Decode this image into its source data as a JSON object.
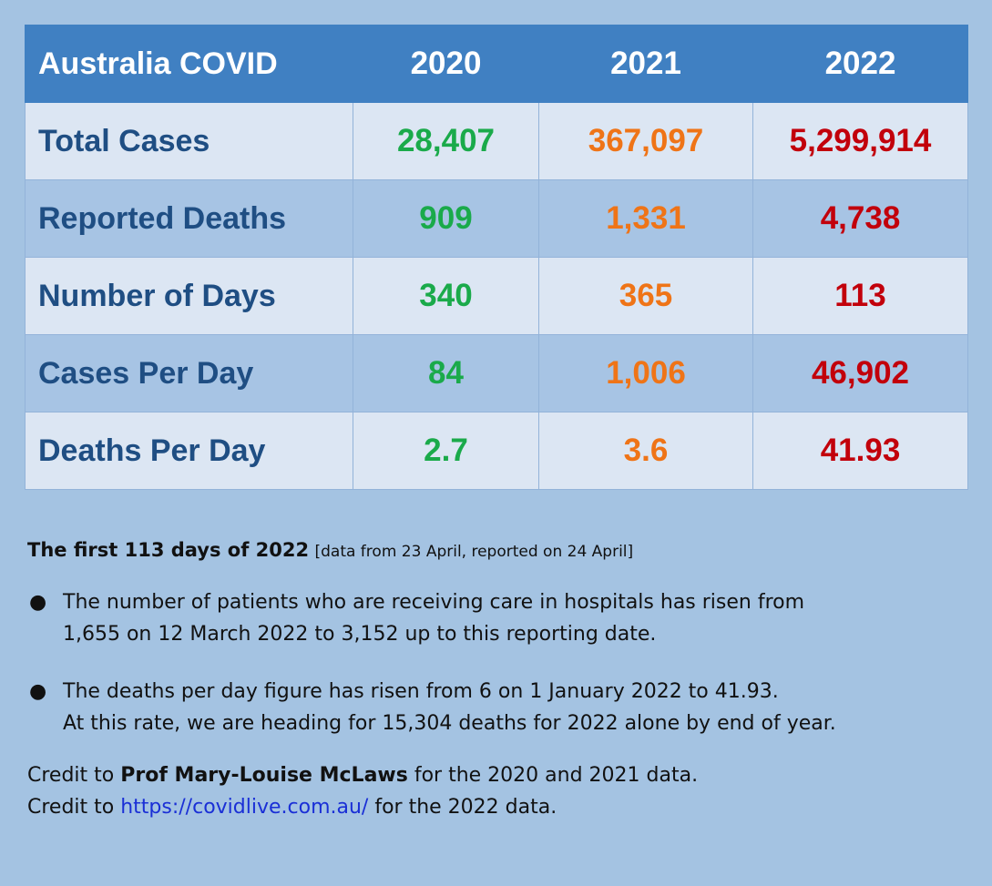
{
  "table": {
    "header": [
      "Australia COVID",
      "2020",
      "2021",
      "2022"
    ],
    "rows": [
      {
        "label": "Total Cases",
        "values": [
          "28,407",
          "367,097",
          "5,299,914"
        ]
      },
      {
        "label": "Reported Deaths",
        "values": [
          "909",
          "1,331",
          "4,738"
        ]
      },
      {
        "label": "Number of Days",
        "values": [
          "340",
          "365",
          "113"
        ]
      },
      {
        "label": "Cases Per Day",
        "values": [
          "84",
          "1,006",
          "46,902"
        ]
      },
      {
        "label": "Deaths Per Day",
        "values": [
          "2.7",
          "3.6",
          "41.93"
        ]
      }
    ],
    "colors": {
      "header_bg": "#4080c2",
      "label_text": "#1f4e83",
      "year_2020": "#1aaa4a",
      "year_2021": "#ef7417",
      "year_2022": "#c2000b"
    }
  },
  "notes": {
    "heading_bold": "The first 113 days of 2022",
    "heading_bracket": "[data from 23 April, reported on 24 April]",
    "bullets": [
      {
        "line1": "The number of patients who are receiving care in hospitals has risen from",
        "line2": "1,655 on 12 March 2022 to 3,152 up to this reporting date."
      },
      {
        "line1": "The deaths per day figure has risen from 6 on 1 January 2022 to 41.93.",
        "line2": "At this rate, we are heading for 15,304 deaths for 2022 alone by end of year."
      }
    ],
    "credit1_prefix": "Credit to ",
    "credit1_bold": "Prof Mary-Louise McLaws",
    "credit1_suffix": " for the 2020 and 2021 data.",
    "credit2_prefix": "Credit to ",
    "credit2_link": "https://covidlive.com.au/",
    "credit2_suffix": " for the 2022 data."
  }
}
